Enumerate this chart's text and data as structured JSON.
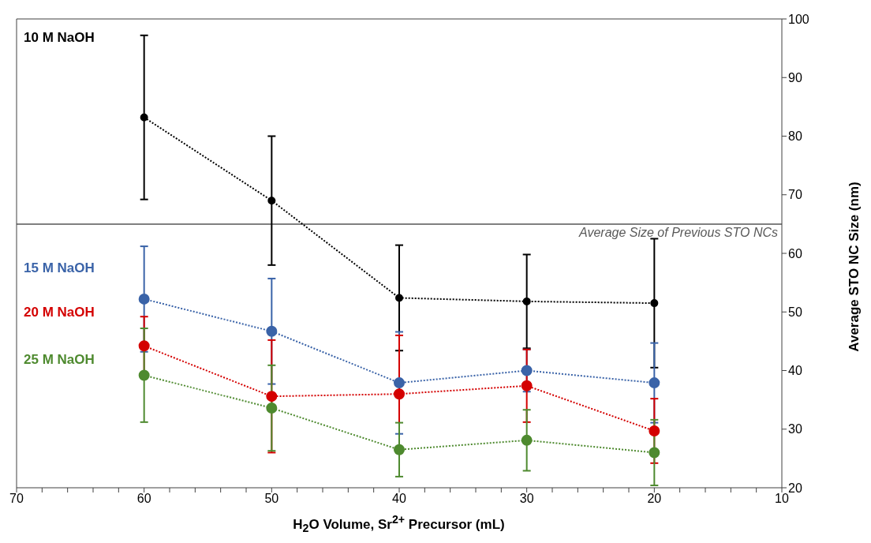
{
  "chart_data": {
    "type": "line",
    "xlabel": "H$_{2}$O Volume, Sr$^{2+}$ Precursor (mL)",
    "ylabel": "Average STO NC Size (nm)",
    "x": [
      60,
      50,
      40,
      30,
      20
    ],
    "series": [
      {
        "name": "10 M NaOH",
        "color": "#000000",
        "values": [
          83.2,
          69.0,
          52.4,
          51.8,
          51.5
        ],
        "errors": [
          14,
          11,
          9,
          8,
          11
        ]
      },
      {
        "name": "15 M NaOH",
        "color": "#3a63a8",
        "values": [
          52.2,
          46.7,
          37.9,
          40.0,
          37.9
        ],
        "errors": [
          9,
          9,
          8.7,
          3.6,
          6.8
        ]
      },
      {
        "name": "20 M NaOH",
        "color": "#d40000",
        "values": [
          44.2,
          35.6,
          36.0,
          37.4,
          29.7
        ],
        "errors": [
          5,
          9.6,
          10,
          6.2,
          5.5
        ]
      },
      {
        "name": "25 M NaOH",
        "color": "#4e8a2f",
        "values": [
          39.2,
          33.6,
          26.5,
          28.1,
          26.0
        ],
        "errors": [
          8,
          7.3,
          4.6,
          5.2,
          5.6
        ]
      }
    ],
    "xlim": [
      70,
      10
    ],
    "xticks": [
      70,
      {
        "value": 68,
        "label": null
      },
      {
        "value": 66,
        "label": null
      },
      {
        "value": 64,
        "label": null
      },
      {
        "value": 62,
        "label": null
      },
      60,
      {
        "value": 58,
        "label": null
      },
      {
        "value": 56,
        "label": null
      },
      {
        "value": 54,
        "label": null
      },
      {
        "value": 52,
        "label": null
      },
      50,
      {
        "value": 48,
        "label": null
      },
      {
        "value": 46,
        "label": null
      },
      {
        "value": 44,
        "label": null
      },
      {
        "value": 42,
        "label": null
      },
      40,
      {
        "value": 38,
        "label": null
      },
      {
        "value": 36,
        "label": null
      },
      {
        "value": 34,
        "label": null
      },
      {
        "value": 32,
        "label": null
      },
      30,
      {
        "value": 28,
        "label": null
      },
      {
        "value": 26,
        "label": null
      },
      {
        "value": 24,
        "label": null
      },
      {
        "value": 22,
        "label": null
      },
      20,
      {
        "value": 18,
        "label": null
      },
      {
        "value": 16,
        "label": null
      },
      {
        "value": 14,
        "label": null
      },
      {
        "value": 12,
        "label": null
      },
      10
    ],
    "ylim": [
      20,
      100
    ],
    "yticks": [
      20,
      30,
      40,
      50,
      60,
      70,
      80,
      90,
      100
    ],
    "ref_lines": [
      {
        "axis": "y",
        "value": 65,
        "label": "Average Size of Previous STO NCs",
        "color": "#808080"
      }
    ],
    "marker": "circle",
    "line_style": "dotted",
    "grid": false
  }
}
